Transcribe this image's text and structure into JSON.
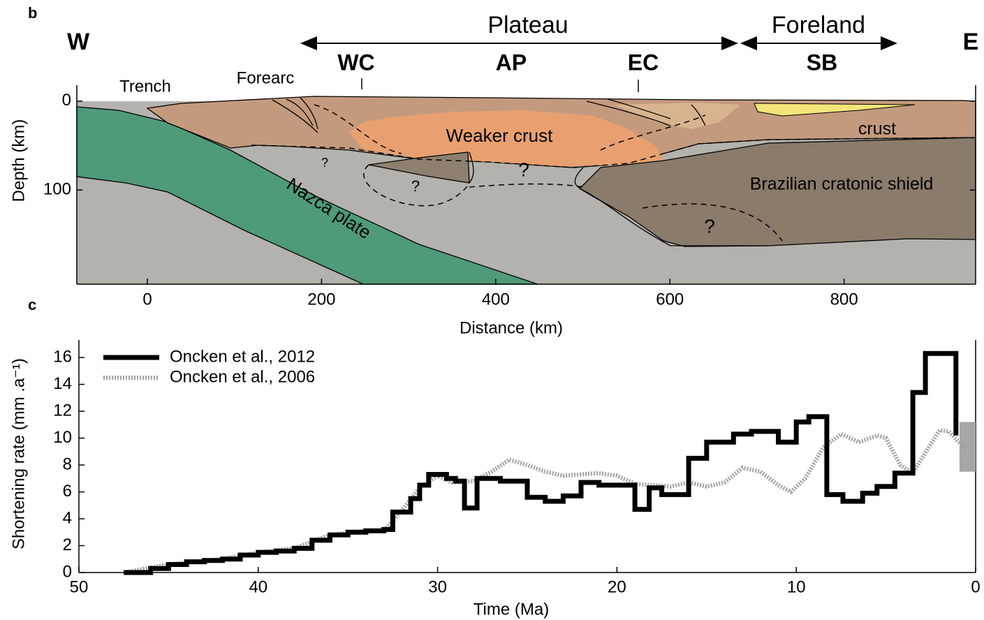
{
  "chart_data": [
    {
      "type": "cross-section",
      "panel_label": "b",
      "x_label": "Distance (km)",
      "y_label": "Depth (km)",
      "xlim": [
        -81,
        951
      ],
      "xticks": [
        0,
        200,
        400,
        600,
        800
      ],
      "ylim": [
        206,
        -18
      ],
      "yticks": [
        0,
        100
      ],
      "labels": [
        "W",
        "E",
        "Plateau",
        "Foreland",
        "WC",
        "AP",
        "EC",
        "SB",
        "Trench",
        "Forearc",
        "Weaker crust",
        "crust",
        "?",
        "?",
        "?",
        "?",
        "Nazca plate",
        "Brazilian cratonic shield"
      ]
    },
    {
      "type": "line",
      "panel_label": "c",
      "x_label": "Time (Ma)",
      "y_label": "Shortening rate (mm .a⁻¹)",
      "xlim": [
        50,
        0
      ],
      "xticks": [
        50,
        40,
        30,
        20,
        10,
        0
      ],
      "ylim": [
        0,
        17.3
      ],
      "yticks": [
        0,
        2,
        4,
        6,
        8,
        10,
        12,
        14,
        16
      ],
      "legend": "upper left",
      "band": {
        "xlim": [
          0.9,
          0
        ],
        "ylim": [
          7.5,
          11.2
        ],
        "color": "#a6a6a6"
      },
      "series": [
        {
          "name": "Oncken et al., 2012",
          "color": "#000000",
          "linestyle": "solid",
          "x": [
            47.5,
            46,
            46,
            45,
            45,
            44,
            44,
            43,
            43,
            42,
            42,
            41,
            41,
            40,
            40,
            39,
            39,
            38,
            38,
            37,
            37,
            36,
            36,
            35,
            35,
            34,
            34,
            33,
            33,
            32.5,
            32.5,
            31.5,
            31.5,
            31,
            31,
            30.5,
            30.5,
            29.5,
            29.5,
            29,
            29,
            28.5,
            28.5,
            27.8,
            27.8,
            26.5,
            26.5,
            25,
            25,
            24,
            24,
            23,
            23,
            22,
            22,
            21,
            21,
            19,
            19,
            18.2,
            18.2,
            17.5,
            17.5,
            16,
            16,
            15,
            15,
            13.5,
            13.5,
            12.5,
            12.5,
            11,
            11,
            10,
            10,
            9.3,
            9.3,
            8.3,
            8.3,
            7.4,
            7.4,
            6.3,
            6.3,
            5.5,
            5.5,
            4.5,
            4.5,
            3.5,
            3.5,
            2.8,
            2.8,
            1.1,
            1.1
          ],
          "values": [
            0,
            0,
            0.3,
            0.3,
            0.6,
            0.6,
            0.8,
            0.8,
            0.9,
            0.9,
            1.0,
            1.0,
            1.3,
            1.3,
            1.5,
            1.5,
            1.6,
            1.6,
            1.8,
            1.8,
            2.4,
            2.4,
            2.8,
            2.8,
            3.0,
            3.0,
            3.1,
            3.1,
            3.2,
            3.2,
            4.5,
            4.5,
            5.5,
            5.5,
            6.5,
            6.5,
            7.3,
            7.3,
            7.0,
            7.0,
            6.8,
            6.8,
            4.8,
            4.8,
            7.0,
            7.0,
            6.8,
            6.8,
            5.6,
            5.6,
            5.3,
            5.3,
            5.7,
            5.7,
            6.7,
            6.7,
            6.5,
            6.5,
            4.7,
            4.7,
            6.3,
            6.3,
            5.8,
            5.8,
            8.5,
            8.5,
            9.7,
            9.7,
            10.3,
            10.3,
            10.5,
            10.5,
            9.7,
            9.7,
            11.2,
            11.2,
            11.6,
            11.6,
            5.8,
            5.8,
            5.3,
            5.3,
            5.9,
            5.9,
            6.4,
            6.4,
            7.4,
            7.4,
            13.4,
            13.4,
            16.3,
            16.3,
            10.2
          ]
        },
        {
          "name": "Oncken et al., 2006",
          "color": "#a0a0a0",
          "linestyle": "dotted",
          "x": [
            47.5,
            45,
            42,
            40,
            38,
            36,
            34,
            33,
            32,
            31,
            30,
            29.2,
            28,
            27,
            26,
            25,
            24,
            23,
            22,
            21,
            20,
            19,
            18,
            17,
            16,
            15,
            14,
            13,
            12,
            11,
            10.3,
            9.5,
            8.5,
            7.5,
            6.5,
            5.5,
            5,
            4.2,
            3.5,
            3,
            2,
            1.5,
            1,
            0.5
          ],
          "values": [
            0,
            0.6,
            1.0,
            1.5,
            1.8,
            2.8,
            3.1,
            3.1,
            4.6,
            6.3,
            7.2,
            6.7,
            6.8,
            7.5,
            8.4,
            8.0,
            7.5,
            7.2,
            7.3,
            7.4,
            7.2,
            6.6,
            6.5,
            6.4,
            6.7,
            6.4,
            6.7,
            7.8,
            7.5,
            6.5,
            6.0,
            7.0,
            9.3,
            10.3,
            9.7,
            10.2,
            10.0,
            8.0,
            7.4,
            8.5,
            10.6,
            10.5,
            9.8,
            9.2
          ]
        }
      ]
    }
  ]
}
